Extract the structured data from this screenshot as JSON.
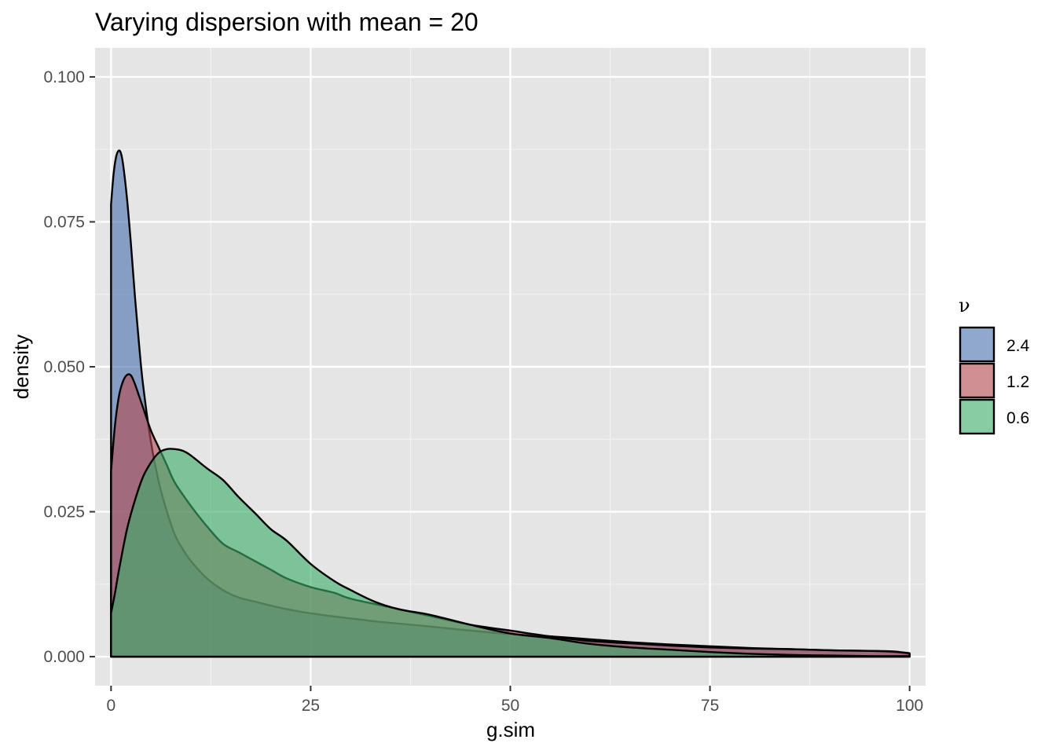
{
  "chart_data": {
    "type": "area",
    "title": "Varying dispersion with mean = 20",
    "xlabel": "g.sim",
    "ylabel": "density",
    "xlim": [
      -2,
      102
    ],
    "ylim": [
      -0.005,
      0.105
    ],
    "x_ticks": [
      0,
      25,
      50,
      75,
      100
    ],
    "x_tick_labels": [
      "0",
      "25",
      "50",
      "75",
      "100"
    ],
    "y_ticks": [
      0,
      0.025,
      0.05,
      0.075,
      0.1
    ],
    "y_tick_labels": [
      "0.000",
      "0.025",
      "0.050",
      "0.075",
      "0.100"
    ],
    "grid": true,
    "legend": {
      "title": "ν",
      "position": "right"
    },
    "series": [
      {
        "name": "2.4",
        "color": "#4c72b0",
        "x": [
          0,
          0.3,
          0.6,
          0.9,
          1.2,
          1.5,
          2,
          2.5,
          3,
          3.5,
          4,
          5,
          6,
          7,
          8,
          9,
          10,
          12,
          14,
          16,
          18,
          20,
          22,
          24,
          27,
          30,
          33,
          36,
          40,
          45,
          50,
          55,
          60,
          65,
          70,
          75,
          80,
          85,
          90,
          95,
          98,
          100
        ],
        "y": [
          0.078,
          0.083,
          0.086,
          0.0872,
          0.087,
          0.085,
          0.079,
          0.071,
          0.062,
          0.054,
          0.047,
          0.037,
          0.03,
          0.025,
          0.021,
          0.0185,
          0.0165,
          0.0135,
          0.0115,
          0.0102,
          0.0095,
          0.0088,
          0.0082,
          0.0077,
          0.0071,
          0.0066,
          0.0061,
          0.0057,
          0.0052,
          0.0045,
          0.0039,
          0.0035,
          0.003,
          0.0025,
          0.0021,
          0.0018,
          0.0015,
          0.0013,
          0.0011,
          0.001,
          0.0008,
          0.0005
        ]
      },
      {
        "name": "1.2",
        "color": "#b24a50",
        "x": [
          0,
          0.5,
          1,
          1.5,
          2,
          2.5,
          3,
          3.5,
          4,
          5,
          6,
          7,
          8,
          10,
          12,
          14,
          16,
          18,
          20,
          22,
          25,
          28,
          30,
          35,
          40,
          45,
          50,
          55,
          60,
          65,
          70,
          75,
          80,
          85,
          90,
          95,
          98,
          100
        ],
        "y": [
          0.032,
          0.04,
          0.045,
          0.0475,
          0.0486,
          0.0485,
          0.047,
          0.045,
          0.043,
          0.039,
          0.036,
          0.033,
          0.03,
          0.026,
          0.0225,
          0.0195,
          0.018,
          0.0165,
          0.015,
          0.0135,
          0.012,
          0.011,
          0.01,
          0.0085,
          0.007,
          0.0055,
          0.0045,
          0.0035,
          0.0027,
          0.0023,
          0.0019,
          0.0016,
          0.0014,
          0.0013,
          0.0011,
          0.001,
          0.0009,
          0.0006
        ]
      },
      {
        "name": "0.6",
        "color": "#3dae6a",
        "x": [
          0,
          0.5,
          1,
          2,
          3,
          4,
          5,
          6,
          7,
          8,
          9,
          10,
          12,
          14,
          16,
          18,
          20,
          22,
          25,
          28,
          30,
          33,
          36,
          40,
          45,
          50,
          55,
          60,
          65,
          70,
          75,
          80,
          85,
          90,
          95,
          100
        ],
        "y": [
          0.0075,
          0.011,
          0.015,
          0.022,
          0.027,
          0.031,
          0.0335,
          0.0352,
          0.0358,
          0.0358,
          0.0355,
          0.0347,
          0.0325,
          0.0305,
          0.0275,
          0.0248,
          0.022,
          0.02,
          0.016,
          0.013,
          0.0115,
          0.0095,
          0.0082,
          0.0072,
          0.0055,
          0.004,
          0.0032,
          0.0022,
          0.0016,
          0.0012,
          0.0008,
          0.0005,
          0.0003,
          0.0002,
          0.0001,
          0.0001
        ]
      }
    ]
  }
}
